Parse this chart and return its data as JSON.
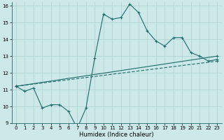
{
  "xlabel": "Humidex (Indice chaleur)",
  "xlim": [
    -0.5,
    23.5
  ],
  "ylim": [
    9,
    16.2
  ],
  "yticks": [
    9,
    10,
    11,
    12,
    13,
    14,
    15,
    16
  ],
  "xticks": [
    0,
    1,
    2,
    3,
    4,
    5,
    6,
    7,
    8,
    9,
    10,
    11,
    12,
    13,
    14,
    15,
    16,
    17,
    18,
    19,
    20,
    21,
    22,
    23
  ],
  "bg_color": "#cde8e8",
  "grid_color": "#aacfcf",
  "line_color": "#1e6b6b",
  "line1_x": [
    0,
    1,
    2,
    3,
    4,
    5,
    6,
    7,
    8,
    9,
    10,
    11,
    12,
    13,
    14,
    15,
    16,
    17,
    18,
    19,
    20,
    21,
    22,
    23
  ],
  "line1_y": [
    11.2,
    10.9,
    11.1,
    9.9,
    10.1,
    10.1,
    9.7,
    8.7,
    9.9,
    12.9,
    15.5,
    15.2,
    15.3,
    16.1,
    15.6,
    14.5,
    13.9,
    13.6,
    14.1,
    14.1,
    13.2,
    13.0,
    12.7,
    12.8
  ],
  "line2_x": [
    0,
    23
  ],
  "line2_y": [
    11.2,
    13.0
  ],
  "line3_x": [
    0,
    23
  ],
  "line3_y": [
    11.2,
    12.7
  ],
  "line2_style": "solid",
  "line3_style": "dashed"
}
